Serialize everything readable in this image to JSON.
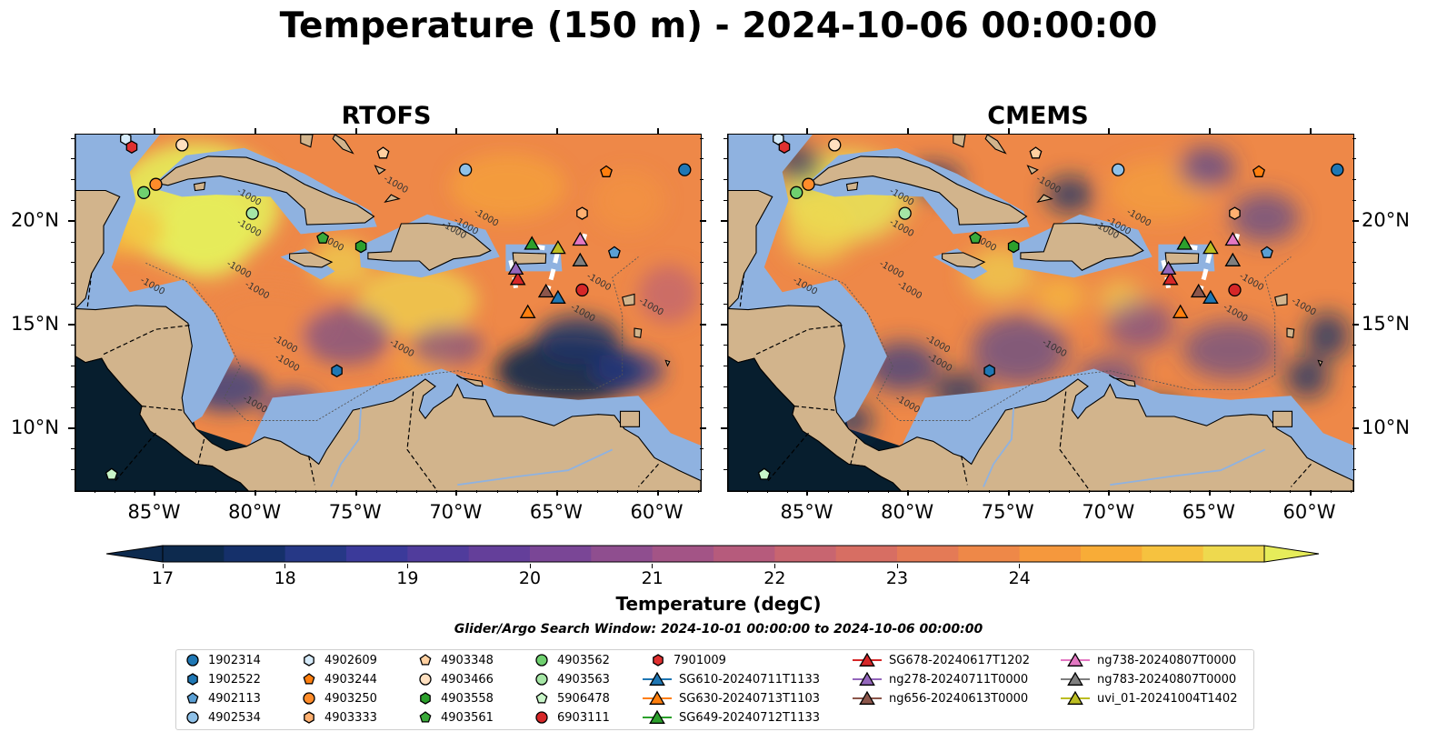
{
  "title": "Temperature (150 m) - 2024-10-06 00:00:00",
  "panels": [
    {
      "name": "RTOFS"
    },
    {
      "name": "CMEMS"
    }
  ],
  "lon_ticks": [
    "85°W",
    "80°W",
    "75°W",
    "70°W",
    "65°W",
    "60°W"
  ],
  "lat_ticks": [
    "20°N",
    "15°N",
    "10°N"
  ],
  "colorbar": {
    "label": "Temperature (degC)",
    "ticks": [
      "17",
      "18",
      "19",
      "20",
      "21",
      "22",
      "23",
      "24"
    ],
    "colors": [
      "#0d2a4e",
      "#15306a",
      "#263886",
      "#3b3a9a",
      "#503c9c",
      "#643f9a",
      "#7a4696",
      "#8f4e8f",
      "#a35486",
      "#b65b7c",
      "#c86570",
      "#d76e63",
      "#e47a56",
      "#ee8848",
      "#f5983d",
      "#f8ac37",
      "#f6c23f",
      "#eed94e",
      "#e6ec5a"
    ]
  },
  "search_window": "Glider/Argo Search Window: 2024-10-01 00:00:00 to 2024-10-06 00:00:00",
  "map_data": {
    "contour_label": "-1000",
    "floats": [
      {
        "id": "1902314",
        "marker": "circle",
        "color": "#1f77b4",
        "lon": -58.7,
        "lat": 22.5
      },
      {
        "id": "1902522",
        "marker": "hexagon",
        "color": "#1f77b4",
        "lon": -76.0,
        "lat": 12.8
      },
      {
        "id": "4902113",
        "marker": "pentagon",
        "color": "#5a9fd4",
        "lon": -62.2,
        "lat": 18.5
      },
      {
        "id": "4902534",
        "marker": "circle",
        "color": "#8fc1e8",
        "lon": -69.6,
        "lat": 22.5
      },
      {
        "id": "4902609",
        "marker": "hexagon",
        "color": "#d6ebfa",
        "lon": -86.5,
        "lat": 24.0
      },
      {
        "id": "4903244",
        "marker": "pentagon",
        "color": "#ff7f0e",
        "lon": -62.6,
        "lat": 22.4
      },
      {
        "id": "4903250",
        "marker": "circle",
        "color": "#ff8c2a",
        "lon": -85.0,
        "lat": 21.8
      },
      {
        "id": "4903333",
        "marker": "hexagon",
        "color": "#ffb070",
        "lon": -63.8,
        "lat": 20.4
      },
      {
        "id": "4903348",
        "marker": "pentagon",
        "color": "#ffd0a0",
        "lon": -73.7,
        "lat": 23.3
      },
      {
        "id": "4903466",
        "marker": "circle",
        "color": "#ffe0c0",
        "lon": -83.7,
        "lat": 23.7
      },
      {
        "id": "4903558",
        "marker": "hexagon",
        "color": "#2ca02c",
        "lon": -74.8,
        "lat": 18.8
      },
      {
        "id": "4903561",
        "marker": "pentagon",
        "color": "#3aaa3a",
        "lon": -76.7,
        "lat": 19.2
      },
      {
        "id": "4903562",
        "marker": "circle",
        "color": "#6fd06f",
        "lon": -85.6,
        "lat": 21.4
      },
      {
        "id": "4903563",
        "marker": "circle",
        "color": "#a5e6a5",
        "lon": -80.2,
        "lat": 20.4
      },
      {
        "id": "5906478",
        "marker": "pentagon",
        "color": "#c8f5c8",
        "lon": -87.2,
        "lat": 7.8
      },
      {
        "id": "6903111",
        "marker": "circle",
        "color": "#d62728",
        "lon": -63.8,
        "lat": 16.7
      },
      {
        "id": "7901009",
        "marker": "hexagon",
        "color": "#e03030",
        "lon": -86.2,
        "lat": 23.6
      }
    ],
    "gliders": [
      {
        "id": "SG678-20240617T1202",
        "color": "#d62728",
        "lon": -67.0,
        "lat": 17.2
      },
      {
        "id": "SG610-20240711T1133",
        "color": "#1f77b4",
        "lon": -65.0,
        "lat": 16.3
      },
      {
        "id": "SG630-20240713T1103",
        "color": "#ff7f0e",
        "lon": -66.5,
        "lat": 15.6
      },
      {
        "id": "SG649-20240712T1133",
        "color": "#2ca02c",
        "lon": -66.3,
        "lat": 18.9
      },
      {
        "id": "ng278-20240711T0000",
        "color": "#9467bd",
        "lon": -67.1,
        "lat": 17.7
      },
      {
        "id": "ng656-20240613T0000",
        "color": "#8c564b",
        "lon": -65.6,
        "lat": 16.6
      },
      {
        "id": "ng738-20240807T0000",
        "color": "#e377c2",
        "lon": -63.9,
        "lat": 19.1
      },
      {
        "id": "ng783-20240807T0000",
        "color": "#7f7f7f",
        "lon": -63.9,
        "lat": 18.1
      },
      {
        "id": "uvi_01-20241004T1402",
        "color": "#bcbd22",
        "lon": -65.0,
        "lat": 18.7
      }
    ]
  },
  "legend": {
    "floats": [
      {
        "label": "1902314",
        "marker": "circle",
        "color": "#1f77b4"
      },
      {
        "label": "1902522",
        "marker": "hexagon",
        "color": "#1f77b4"
      },
      {
        "label": "4902113",
        "marker": "pentagon",
        "color": "#5a9fd4"
      },
      {
        "label": "4902534",
        "marker": "circle",
        "color": "#8fc1e8"
      },
      {
        "label": "4902609",
        "marker": "hexagon",
        "color": "#d6ebfa"
      },
      {
        "label": "4903244",
        "marker": "pentagon",
        "color": "#ff7f0e"
      },
      {
        "label": "4903250",
        "marker": "circle",
        "color": "#ff8c2a"
      },
      {
        "label": "4903333",
        "marker": "hexagon",
        "color": "#ffb070"
      },
      {
        "label": "4903348",
        "marker": "pentagon",
        "color": "#ffd0a0"
      },
      {
        "label": "4903466",
        "marker": "circle",
        "color": "#ffe0c0"
      },
      {
        "label": "4903558",
        "marker": "hexagon",
        "color": "#2ca02c"
      },
      {
        "label": "4903561",
        "marker": "pentagon",
        "color": "#3aaa3a"
      },
      {
        "label": "4903562",
        "marker": "circle",
        "color": "#6fd06f"
      },
      {
        "label": "4903563",
        "marker": "circle",
        "color": "#a5e6a5"
      },
      {
        "label": "5906478",
        "marker": "pentagon",
        "color": "#c8f5c8"
      },
      {
        "label": "6903111",
        "marker": "circle",
        "color": "#d62728"
      },
      {
        "label": "7901009",
        "marker": "hexagon",
        "color": "#e03030"
      }
    ],
    "gliders": [
      {
        "label": "SG610-20240711T1133",
        "color": "#1f77b4"
      },
      {
        "label": "SG630-20240713T1103",
        "color": "#ff7f0e"
      },
      {
        "label": "SG649-20240712T1133",
        "color": "#2ca02c"
      },
      {
        "label": "SG678-20240617T1202",
        "color": "#d62728"
      },
      {
        "label": "ng278-20240711T0000",
        "color": "#9467bd"
      },
      {
        "label": "ng656-20240613T0000",
        "color": "#8c564b"
      },
      {
        "label": "ng738-20240807T0000",
        "color": "#e377c2"
      },
      {
        "label": "ng783-20240807T0000",
        "color": "#7f7f7f"
      },
      {
        "label": "uvi_01-20241004T1402",
        "color": "#bcbd22"
      }
    ]
  }
}
